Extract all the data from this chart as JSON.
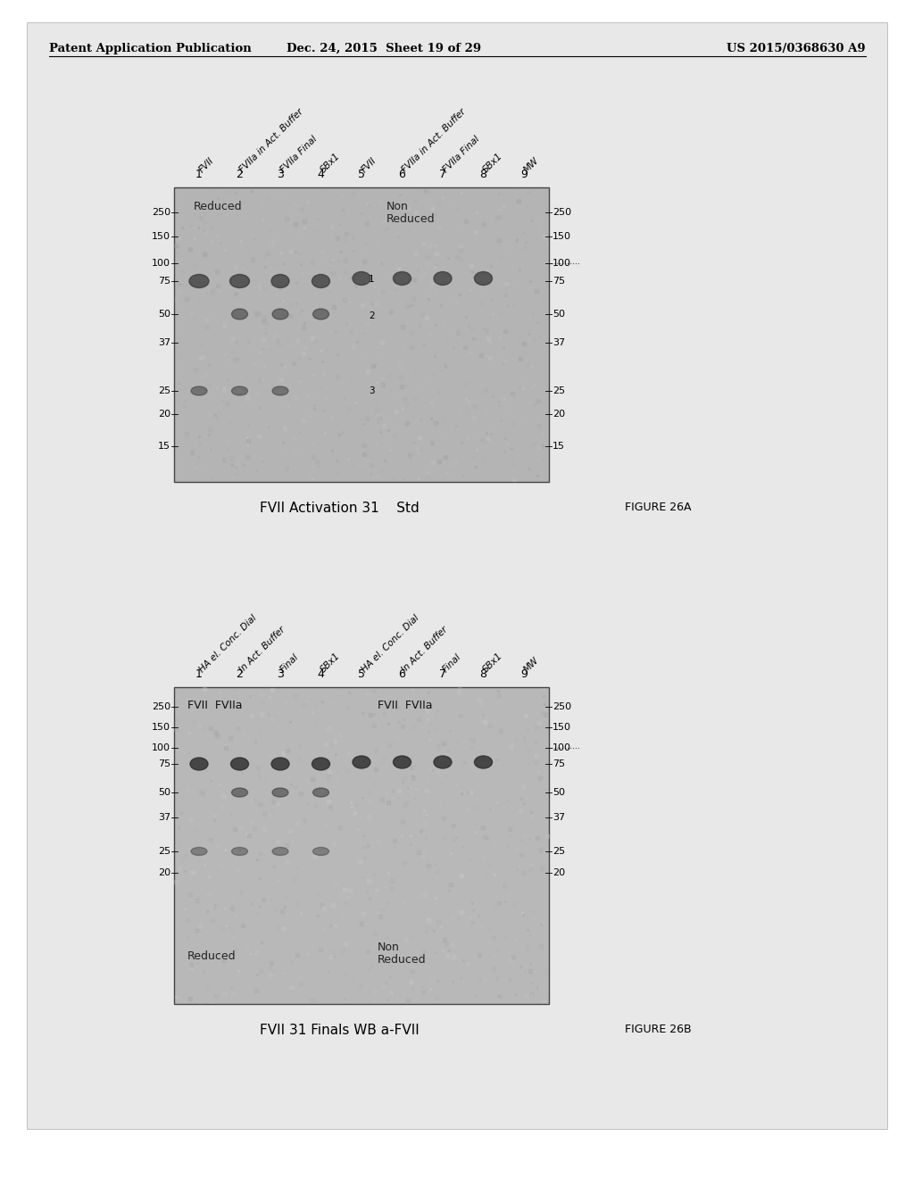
{
  "page_header_left": "Patent Application Publication",
  "page_header_center": "Dec. 24, 2015  Sheet 19 of 29",
  "page_header_right": "US 2015/0368630 A9",
  "page_bg": "#e8e8e8",
  "content_bg": "#ececec",
  "fig_a": {
    "title": "FVII Activation 31    Std",
    "figure_label": "FIGURE 26A",
    "lane_numbers": [
      "1",
      "2",
      "3",
      "4",
      "5",
      "6",
      "7",
      "8",
      "9"
    ],
    "col_labels": [
      "FVII",
      "FVIIa in Act. Buffer",
      "FVIIa Final",
      "SBx1",
      "FVII",
      "FVIIa in Act. Buffer",
      "FVIIa Final",
      "SBx1",
      "MW"
    ],
    "left_mw": [
      "250",
      "150",
      "100",
      "75",
      "50",
      "37",
      "25",
      "20",
      "15"
    ],
    "right_mw": [
      "250",
      "150",
      "100",
      "75",
      "50",
      "37",
      "25",
      "20",
      "15"
    ],
    "internal_label_left": "Reduced",
    "internal_label_right": "Non\nReduced",
    "gel_facecolor": "#b0b0b0"
  },
  "fig_b": {
    "title": "FVII 31 Finals WB a-FVII",
    "figure_label": "FIGURE 26B",
    "lane_numbers": [
      "1",
      "2",
      "3",
      "4",
      "5",
      "6",
      "7",
      "8",
      "9"
    ],
    "col_labels": [
      "HA el. Conc. Dial",
      "In Act. Buffer",
      "Final",
      "SBx1",
      "HA el. Conc. Dial",
      "In Act. Buffer",
      "Final",
      "SBx1",
      "MW"
    ],
    "left_mw": [
      "250",
      "150",
      "100",
      "75",
      "50",
      "37",
      "25",
      "20"
    ],
    "right_mw": [
      "250",
      "150",
      "100",
      "75",
      "50",
      "37",
      "25",
      "20"
    ],
    "internal_label_tl1": "FVII",
    "internal_label_tl2": "FVIIa",
    "internal_label_tr1": "FVII",
    "internal_label_tr2": "FVIIa",
    "internal_label_bl": "Reduced",
    "internal_label_br": "Non\nReduced",
    "gel_facecolor": "#b8b8b8"
  },
  "gel_border_color": "#555555",
  "text_color": "#111111"
}
